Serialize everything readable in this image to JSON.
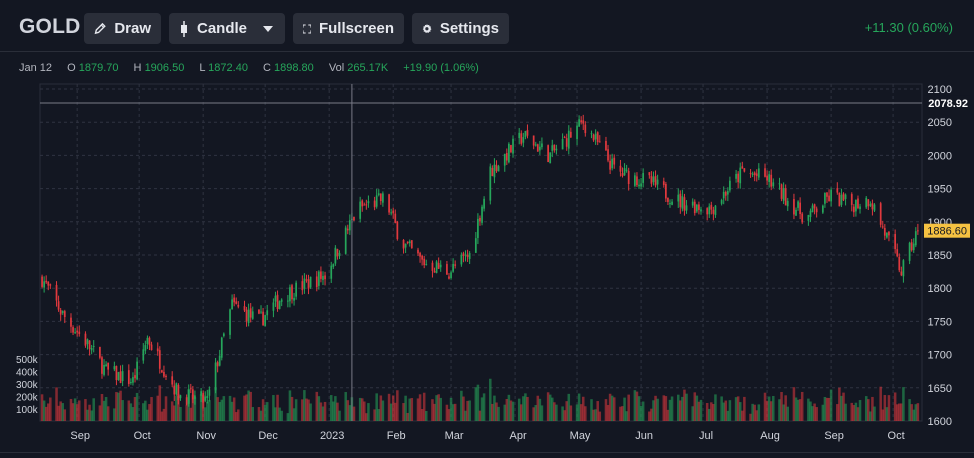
{
  "toolbar": {
    "symbol": "GOLD",
    "draw_label": "Draw",
    "chart_type_label": "Candle",
    "fullscreen_label": "Fullscreen",
    "settings_label": "Settings",
    "change_text": "+11.30 (0.60%)"
  },
  "info": {
    "date": "Jan 12",
    "open_key": "O",
    "open": "1879.70",
    "high_key": "H",
    "high": "1906.50",
    "low_key": "L",
    "low": "1872.40",
    "close_key": "C",
    "close": "1898.80",
    "vol_key": "Vol",
    "vol": "265.17K",
    "change": "+19.90 (1.06%)"
  },
  "colors": {
    "background": "#131722",
    "up": "#26a65b",
    "down": "#e0393e",
    "crosshair_label_bg": "#131722",
    "last_price_bg": "#f5c242"
  },
  "icons": {
    "draw": "pencil-icon",
    "candle": "candle-icon",
    "dropdown": "chevron-down-icon",
    "fullscreen": "fullscreen-icon",
    "settings": "gear-icon"
  },
  "chart_data": {
    "type": "candlestick",
    "symbol": "GOLD",
    "y_ticks": [
      1600,
      1650,
      1700,
      1750,
      1800,
      1850,
      1900,
      1950,
      2000,
      2050,
      2100
    ],
    "ylim": [
      1600,
      2100
    ],
    "volume_ticks": [
      "100k",
      "200k",
      "300k",
      "400k",
      "500k"
    ],
    "x_ticks": [
      "Sep",
      "Oct",
      "Nov",
      "Dec",
      "2023",
      "Feb",
      "Mar",
      "Apr",
      "May",
      "Jun",
      "Jul",
      "Aug",
      "Sep",
      "Oct"
    ],
    "crosshair_price": "2078.92",
    "last_price": "1886.60",
    "grid": true,
    "close_path_anchors": [
      [
        "2022-08-15",
        1815
      ],
      [
        "2022-08-25",
        1760
      ],
      [
        "2022-09-05",
        1720
      ],
      [
        "2022-09-15",
        1675
      ],
      [
        "2022-09-28",
        1660
      ],
      [
        "2022-10-05",
        1725
      ],
      [
        "2022-10-20",
        1640
      ],
      [
        "2022-11-03",
        1630
      ],
      [
        "2022-11-15",
        1775
      ],
      [
        "2022-11-28",
        1750
      ],
      [
        "2022-12-10",
        1790
      ],
      [
        "2022-12-30",
        1820
      ],
      [
        "2023-01-15",
        1920
      ],
      [
        "2023-01-28",
        1935
      ],
      [
        "2023-02-05",
        1870
      ],
      [
        "2023-02-15",
        1840
      ],
      [
        "2023-02-28",
        1825
      ],
      [
        "2023-03-10",
        1850
      ],
      [
        "2023-03-20",
        1975
      ],
      [
        "2023-04-05",
        2030
      ],
      [
        "2023-04-18",
        2000
      ],
      [
        "2023-05-04",
        2050
      ],
      [
        "2023-05-20",
        1975
      ],
      [
        "2023-06-05",
        1960
      ],
      [
        "2023-06-20",
        1930
      ],
      [
        "2023-07-05",
        1920
      ],
      [
        "2023-07-20",
        1975
      ],
      [
        "2023-08-01",
        1965
      ],
      [
        "2023-08-20",
        1905
      ],
      [
        "2023-09-01",
        1940
      ],
      [
        "2023-09-10",
        1925
      ],
      [
        "2023-09-20",
        1935
      ],
      [
        "2023-10-05",
        1825
      ],
      [
        "2023-10-13",
        1886.6
      ]
    ]
  }
}
